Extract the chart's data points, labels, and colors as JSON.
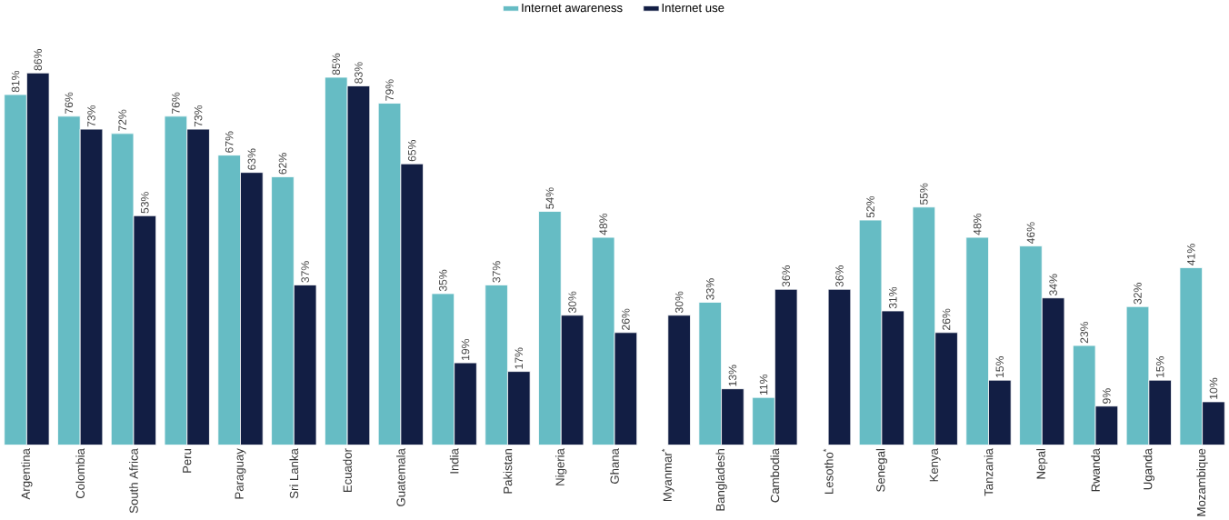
{
  "chart_data": {
    "type": "bar",
    "categories": [
      "Argentina",
      "Colombia",
      "South Africa",
      "Peru",
      "Paraguay",
      "Sri Lanka",
      "Ecuador",
      "Guatemala",
      "India",
      "Pakistan",
      "Nigeria",
      "Ghana",
      "Myanmar$^{*}$",
      "Bangladesh",
      "Cambodia",
      "Lesotho$^{*}$",
      "Senegal",
      "Kenya",
      "Tanzania",
      "Nepal",
      "Rwanda",
      "Uganda",
      "Mozambique"
    ],
    "series": [
      {
        "name": "Internet awareness",
        "color": "#66bcc4",
        "values": [
          81,
          76,
          72,
          76,
          67,
          62,
          85,
          79,
          35,
          37,
          54,
          48,
          null,
          33,
          11,
          null,
          52,
          55,
          48,
          46,
          23,
          32,
          41
        ],
        "value_labels": [
          "81%",
          "76%",
          "72%",
          "76%",
          "67%",
          "62%",
          "85%",
          "79%",
          "35%",
          "37%",
          "54%",
          "48%",
          null,
          "33%",
          "11%",
          null,
          "52%",
          "55%",
          "48%",
          "46%",
          "23%",
          "32%",
          "41%"
        ]
      },
      {
        "name": "Internet use",
        "color": "#121e44",
        "values": [
          86,
          73,
          53,
          73,
          63,
          37,
          83,
          65,
          19,
          17,
          30,
          26,
          30,
          13,
          36,
          36,
          31,
          26,
          15,
          34,
          9,
          15,
          10
        ],
        "value_labels": [
          "86%",
          "73%",
          "53%",
          "73%",
          "63%",
          "37%",
          "83%",
          "65%",
          "19%",
          "17%",
          "30%",
          "26%",
          "30%",
          "13%",
          "36%",
          "36%",
          "31%",
          "26%",
          "15%",
          "34%",
          "9%",
          "15%",
          "10%"
        ]
      }
    ],
    "legend": "top"
  }
}
